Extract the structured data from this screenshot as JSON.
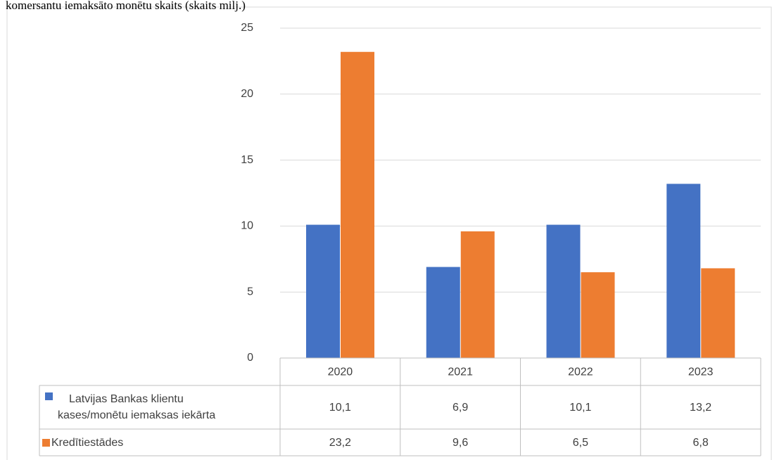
{
  "chart_data": {
    "type": "bar",
    "title": "komersantu iemaksāto monētu skaits (skaits milj.)",
    "categories": [
      "2020",
      "2021",
      "2022",
      "2023"
    ],
    "series": [
      {
        "name": "Latvijas Bankas klientu kases/monētu iemaksas iekārta",
        "color": "#4472c4",
        "values": [
          10.1,
          6.9,
          10.1,
          13.2
        ],
        "value_labels": [
          "10,1",
          "6,9",
          "10,1",
          "13,2"
        ]
      },
      {
        "name": "Kredītiestādes",
        "color": "#ed7d31",
        "values": [
          23.2,
          9.6,
          6.5,
          6.8
        ],
        "value_labels": [
          "23,2",
          "9,6",
          "6,5",
          "6,8"
        ]
      }
    ],
    "ylim": [
      0,
      25
    ],
    "yticks": [
      0,
      5,
      10,
      15,
      20,
      25
    ],
    "grid": true,
    "legend": "table"
  }
}
